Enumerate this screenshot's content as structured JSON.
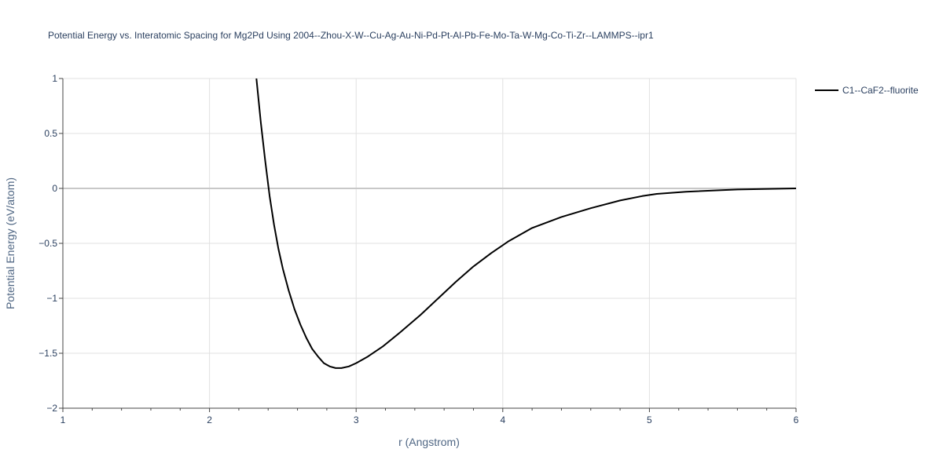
{
  "chart_data": {
    "type": "line",
    "title": "Potential Energy vs. Interatomic Spacing for Mg2Pd Using 2004--Zhou-X-W--Cu-Ag-Au-Ni-Pd-Pt-Al-Pb-Fe-Mo-Ta-W-Mg-Co-Ti-Zr--LAMMPS--ipr1",
    "xlabel": "r (Angstrom)",
    "ylabel": "Potential Energy (eV/atom)",
    "xlim": [
      1,
      6
    ],
    "ylim": [
      -2,
      1
    ],
    "x_ticks": [
      "1",
      "2",
      "3",
      "4",
      "5",
      "6"
    ],
    "y_ticks": [
      "1",
      "0.5",
      "0",
      "−0.5",
      "−1",
      "−1.5",
      "−2"
    ],
    "x_tick_values": [
      1,
      2,
      3,
      4,
      5,
      6
    ],
    "y_tick_values": [
      1,
      0.5,
      0,
      -0.5,
      -1,
      -1.5,
      -2
    ],
    "grid": true,
    "legend_position": "top-right",
    "series": [
      {
        "name": "C1--CaF2--fluorite",
        "color": "#000000",
        "x": [
          2.32,
          2.35,
          2.38,
          2.41,
          2.44,
          2.47,
          2.5,
          2.54,
          2.58,
          2.62,
          2.66,
          2.7,
          2.74,
          2.78,
          2.82,
          2.86,
          2.9,
          2.95,
          3.0,
          3.08,
          3.18,
          3.3,
          3.44,
          3.56,
          3.68,
          3.8,
          3.92,
          4.04,
          4.2,
          4.4,
          4.6,
          4.8,
          4.95,
          5.05,
          5.25,
          5.6,
          6.0
        ],
        "y": [
          1.0,
          0.6,
          0.25,
          -0.07,
          -0.33,
          -0.55,
          -0.73,
          -0.93,
          -1.1,
          -1.24,
          -1.36,
          -1.46,
          -1.53,
          -1.59,
          -1.62,
          -1.635,
          -1.635,
          -1.62,
          -1.59,
          -1.53,
          -1.44,
          -1.31,
          -1.15,
          -1.0,
          -0.85,
          -0.71,
          -0.59,
          -0.48,
          -0.36,
          -0.26,
          -0.18,
          -0.11,
          -0.07,
          -0.05,
          -0.03,
          -0.01,
          0.0
        ]
      }
    ]
  }
}
